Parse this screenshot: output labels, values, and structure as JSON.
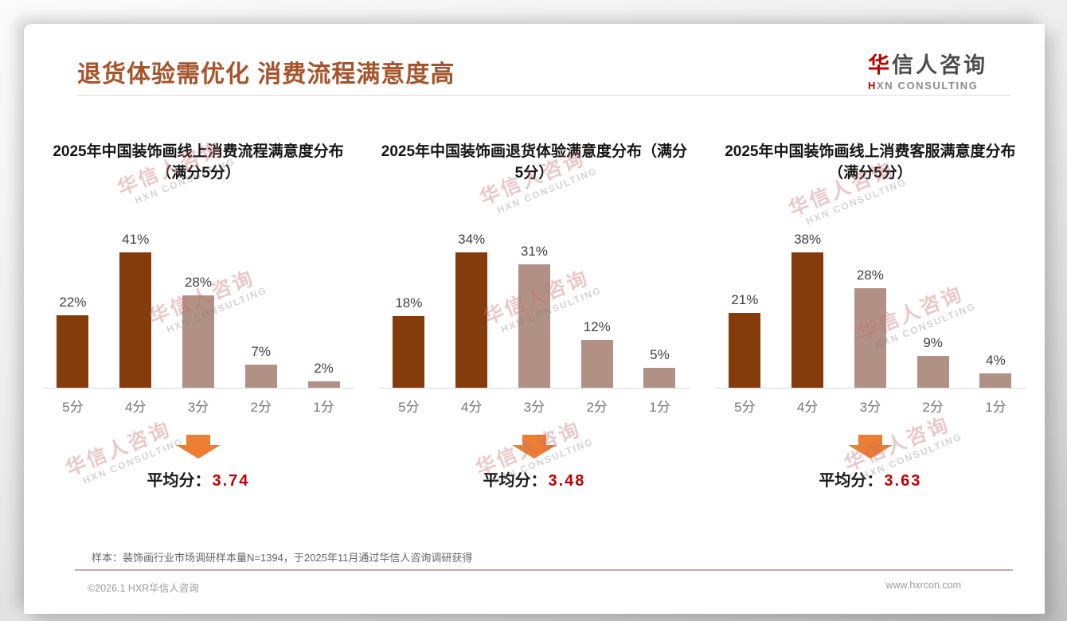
{
  "page": {
    "title": "退货体验需优化 消费流程满意度高",
    "logo": {
      "cn_first": "华",
      "cn_rest": "信人咨询",
      "en_first": "H",
      "en_rest": "XN CONSULTING"
    },
    "watermark": {
      "cn": "华信人咨询",
      "en": "HXN CONSULTING"
    },
    "source_note": "样本：装饰画行业市场调研样本量N=1394，于2025年11月通过华信人咨询调研获得",
    "footer_left": "©2026.1 HXR华信人咨询",
    "footer_right": "www.hxrcon.com"
  },
  "colors": {
    "title": "#A5552B",
    "bar_dark": "#843C0C",
    "bar_light": "#B19186",
    "arrow": "#ED7D31",
    "avg_value": "#C00000",
    "logo_accent": "#C00000"
  },
  "chart_data": [
    {
      "type": "bar",
      "title": "2025年中国装饰画线上消费流程满意度分布（满分5分）",
      "categories": [
        "5分",
        "4分",
        "3分",
        "2分",
        "1分"
      ],
      "values": [
        22,
        41,
        28,
        7,
        2
      ],
      "value_labels": [
        "22%",
        "41%",
        "28%",
        "7%",
        "2%"
      ],
      "bar_colors": [
        "dark",
        "dark",
        "light",
        "light",
        "light"
      ],
      "ylim": [
        0,
        45
      ],
      "grid": false,
      "legend": "none",
      "avg_label": "平均分：",
      "avg_value": "3.74"
    },
    {
      "type": "bar",
      "title": "2025年中国装饰画退货体验满意度分布（满分5分）",
      "categories": [
        "5分",
        "4分",
        "3分",
        "2分",
        "1分"
      ],
      "values": [
        18,
        34,
        31,
        12,
        5
      ],
      "value_labels": [
        "18%",
        "34%",
        "31%",
        "12%",
        "5%"
      ],
      "bar_colors": [
        "dark",
        "dark",
        "light",
        "light",
        "light"
      ],
      "ylim": [
        0,
        40
      ],
      "grid": false,
      "legend": "none",
      "avg_label": "平均分：",
      "avg_value": "3.48"
    },
    {
      "type": "bar",
      "title": "2025年中国装饰画线上消费客服满意度分布（满分5分）",
      "categories": [
        "5分",
        "4分",
        "3分",
        "2分",
        "1分"
      ],
      "values": [
        21,
        38,
        28,
        9,
        4
      ],
      "value_labels": [
        "21%",
        "38%",
        "28%",
        "9%",
        "4%"
      ],
      "bar_colors": [
        "dark",
        "dark",
        "light",
        "light",
        "light"
      ],
      "ylim": [
        0,
        42
      ],
      "grid": false,
      "legend": "none",
      "avg_label": "平均分：",
      "avg_value": "3.63"
    }
  ]
}
